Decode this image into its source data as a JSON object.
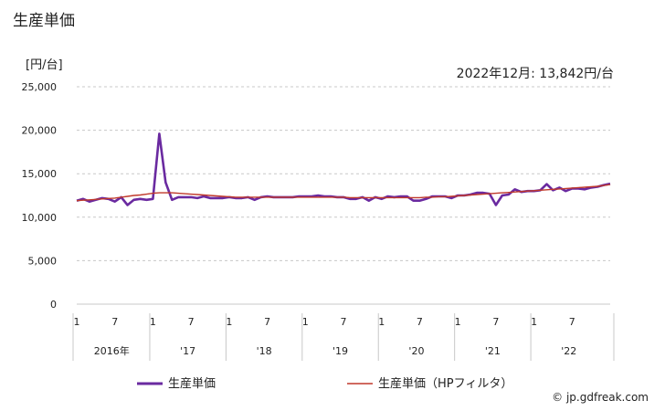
{
  "title": "生産単価",
  "unit_label": "[円/台]",
  "latest_label": "2022年12月: 13,842円/台",
  "credit": "© jp.gdfreak.com",
  "colors": {
    "series": "#6a2aa0",
    "filter": "#c0392b",
    "grid": "#c8c8c8"
  },
  "chart_data": {
    "type": "line",
    "title": "生産単価",
    "ylabel": "[円/台]",
    "ylim": [
      0,
      25000
    ],
    "y_ticks": [
      0,
      5000,
      10000,
      15000,
      20000,
      25000
    ],
    "y_tick_labels": [
      "0",
      "5,000",
      "10,000",
      "15,000",
      "20,000",
      "25,000"
    ],
    "x_ticks": [
      {
        "month_index": 0,
        "label": "1"
      },
      {
        "month_index": 6,
        "label": "7"
      },
      {
        "month_index": 12,
        "label": "1"
      },
      {
        "month_index": 18,
        "label": "7"
      },
      {
        "month_index": 24,
        "label": "1"
      },
      {
        "month_index": 30,
        "label": "7"
      },
      {
        "month_index": 36,
        "label": "1"
      },
      {
        "month_index": 42,
        "label": "7"
      },
      {
        "month_index": 48,
        "label": "1"
      },
      {
        "month_index": 54,
        "label": "7"
      },
      {
        "month_index": 60,
        "label": "1"
      },
      {
        "month_index": 66,
        "label": "7"
      },
      {
        "month_index": 72,
        "label": "1"
      },
      {
        "month_index": 78,
        "label": "7"
      }
    ],
    "year_labels": [
      "2016年",
      "'17",
      "'18",
      "'19",
      "'20",
      "'21",
      "'22"
    ],
    "x_start": "2016-01",
    "x_end": "2022-12",
    "grid": true,
    "legend": "bottom",
    "series": [
      {
        "name": "生産単価",
        "values": [
          11900,
          12100,
          11800,
          12000,
          12200,
          12100,
          11800,
          12300,
          11400,
          12000,
          12100,
          12000,
          12100,
          19600,
          14000,
          12000,
          12300,
          12300,
          12300,
          12200,
          12400,
          12200,
          12200,
          12200,
          12300,
          12200,
          12200,
          12300,
          12000,
          12300,
          12400,
          12300,
          12300,
          12300,
          12300,
          12400,
          12400,
          12400,
          12500,
          12400,
          12400,
          12300,
          12300,
          12100,
          12100,
          12300,
          11900,
          12300,
          12100,
          12400,
          12300,
          12400,
          12400,
          11900,
          11900,
          12100,
          12400,
          12400,
          12400,
          12200,
          12500,
          12500,
          12600,
          12800,
          12800,
          12700,
          11400,
          12500,
          12600,
          13200,
          12900,
          13000,
          13000,
          13100,
          13800,
          13100,
          13400,
          13000,
          13300,
          13300,
          13200,
          13400,
          13500,
          13700,
          13842
        ]
      },
      {
        "name": "生産単価（HPフィルタ）",
        "values": [
          11900,
          11950,
          12000,
          12050,
          12100,
          12150,
          12200,
          12300,
          12400,
          12500,
          12550,
          12650,
          12750,
          12800,
          12800,
          12800,
          12750,
          12700,
          12650,
          12600,
          12550,
          12500,
          12450,
          12400,
          12350,
          12300,
          12300,
          12300,
          12300,
          12300,
          12300,
          12300,
          12300,
          12300,
          12300,
          12300,
          12300,
          12300,
          12300,
          12300,
          12300,
          12300,
          12300,
          12250,
          12250,
          12250,
          12250,
          12250,
          12250,
          12250,
          12250,
          12250,
          12250,
          12250,
          12250,
          12300,
          12300,
          12350,
          12350,
          12400,
          12450,
          12500,
          12550,
          12600,
          12650,
          12700,
          12750,
          12800,
          12850,
          12900,
          12950,
          13000,
          13050,
          13100,
          13150,
          13200,
          13250,
          13300,
          13350,
          13400,
          13450,
          13500,
          13550,
          13650,
          13750
        ]
      }
    ]
  }
}
